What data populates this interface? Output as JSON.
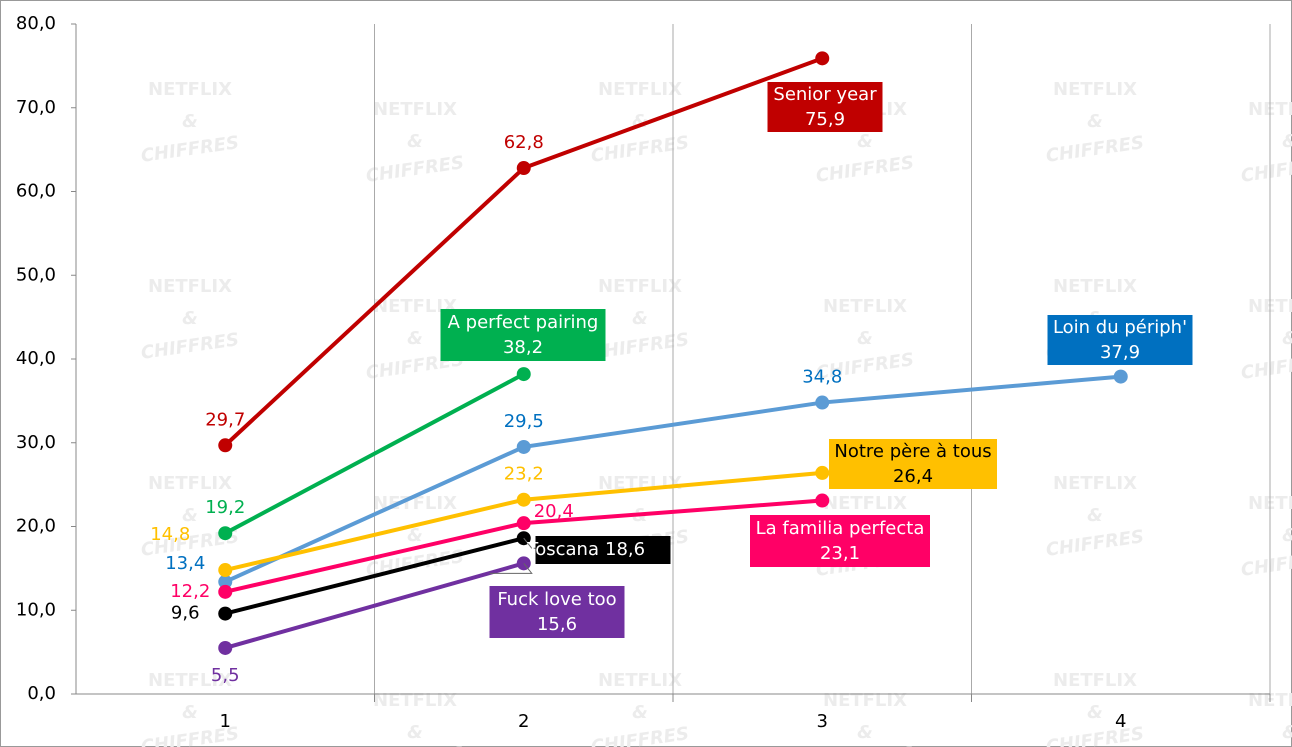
{
  "chart_data": {
    "type": "line",
    "watermark": {
      "line1": "NETFLIX",
      "line2": "&",
      "line3": "CHIFFRES"
    },
    "categories": [
      "1",
      "2",
      "3",
      "4"
    ],
    "ylim": [
      0,
      80
    ],
    "yticks": [
      {
        "value": 0,
        "label": "0,0"
      },
      {
        "value": 10,
        "label": "10,0"
      },
      {
        "value": 20,
        "label": "20,0"
      },
      {
        "value": 30,
        "label": "30,0"
      },
      {
        "value": 40,
        "label": "40,0"
      },
      {
        "value": 50,
        "label": "50,0"
      },
      {
        "value": 60,
        "label": "60,0"
      },
      {
        "value": 70,
        "label": "70,0"
      },
      {
        "value": 80,
        "label": "80,0"
      }
    ],
    "grid": true,
    "series": [
      {
        "name": "Senior year",
        "color": "#c00000",
        "label_color": "#c00000",
        "values": [
          29.7,
          62.8,
          75.9,
          null
        ],
        "value_labels": [
          "29,7",
          "62,8",
          "75,9",
          null
        ]
      },
      {
        "name": "A perfect pairing",
        "color": "#00b050",
        "label_color": "#00b050",
        "values": [
          19.2,
          38.2,
          null,
          null
        ],
        "value_labels": [
          "19,2",
          "38,2",
          null,
          null
        ]
      },
      {
        "name": "Loin du périph'",
        "color": "#5b9bd5",
        "label_color": "#0070c0",
        "values": [
          13.4,
          29.5,
          34.8,
          37.9
        ],
        "value_labels": [
          "13,4",
          "29,5",
          "34,8",
          "37,9"
        ]
      },
      {
        "name": "Notre père à tous",
        "color": "#ffc000",
        "label_color": "#ffc000",
        "values": [
          14.8,
          23.2,
          26.4,
          null
        ],
        "value_labels": [
          "14,8",
          "23,2",
          "26,4",
          null
        ]
      },
      {
        "name": "La familia perfecta",
        "color": "#ff0066",
        "label_color": "#ff0066",
        "values": [
          12.2,
          20.4,
          23.1,
          null
        ],
        "value_labels": [
          "12,2",
          "20,4",
          "23,1",
          null
        ]
      },
      {
        "name": "Toscana",
        "color": "#000000",
        "label_color": "#000000",
        "values": [
          9.6,
          18.6,
          null,
          null
        ],
        "value_labels": [
          "9,6",
          "18,6",
          null,
          null
        ]
      },
      {
        "name": "Fuck love too",
        "color": "#7030a0",
        "label_color": "#7030a0",
        "values": [
          5.5,
          15.6,
          null,
          null
        ],
        "value_labels": [
          "5,5",
          "15,6",
          null,
          null
        ]
      }
    ]
  }
}
